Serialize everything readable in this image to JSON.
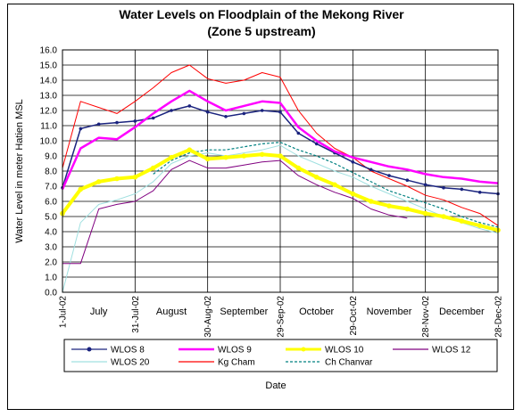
{
  "chart_data": {
    "type": "line",
    "title": "Water Levels on Floodplain of the Mekong River",
    "subtitle": "(Zone 5 upstream)",
    "xlabel": "Date",
    "ylabel": "Water  Level in meter Hatien MSL",
    "ylim": [
      0,
      16
    ],
    "yticks": [
      "0.0",
      "1.0",
      "2.0",
      "3.0",
      "4.0",
      "5.0",
      "6.0",
      "7.0",
      "8.0",
      "9.0",
      "10.0",
      "11.0",
      "12.0",
      "13.0",
      "14.0",
      "15.0",
      "16.0"
    ],
    "grid": true,
    "x": [
      "1-Jul-02",
      "8-Jul-02",
      "15-Jul-02",
      "22-Jul-02",
      "31-Jul-02",
      "8-Aug-02",
      "15-Aug-02",
      "22-Aug-02",
      "30-Aug-02",
      "7-Sep-02",
      "14-Sep-02",
      "21-Sep-02",
      "29-Sep-02",
      "6-Oct-02",
      "13-Oct-02",
      "20-Oct-02",
      "29-Oct-02",
      "6-Nov-02",
      "13-Nov-02",
      "20-Nov-02",
      "28-Nov-02",
      "6-Dec-02",
      "13-Dec-02",
      "20-Dec-02",
      "28-Dec-02"
    ],
    "date_ticks": [
      "1-Jul-02",
      "31-Jul-02",
      "30-Aug-02",
      "29-Sep-02",
      "29-Oct-02",
      "28-Nov-02",
      "28-Dec-02"
    ],
    "month_labels": [
      "July",
      "August",
      "September",
      "October",
      "November",
      "December"
    ],
    "series": [
      {
        "name": "WLOS 8",
        "color": "#1a237e",
        "style": "solid-marker",
        "values": [
          6.9,
          10.8,
          11.1,
          11.2,
          11.3,
          11.5,
          12.0,
          12.3,
          11.9,
          11.6,
          11.8,
          12.0,
          11.9,
          10.5,
          9.8,
          9.2,
          8.6,
          8.1,
          7.7,
          7.4,
          7.1,
          6.9,
          6.8,
          6.6,
          6.5
        ]
      },
      {
        "name": "WLOS 9",
        "color": "#ff00ff",
        "style": "solid-thick",
        "values": [
          6.8,
          9.5,
          10.2,
          10.1,
          10.9,
          11.8,
          12.6,
          13.3,
          12.6,
          12.0,
          12.3,
          12.6,
          12.5,
          10.9,
          10.0,
          9.3,
          8.9,
          8.6,
          8.3,
          8.1,
          7.8,
          7.6,
          7.5,
          7.3,
          7.2
        ]
      },
      {
        "name": "WLOS 10",
        "color": "#ffff00",
        "style": "solid-marker-thick",
        "values": [
          5.2,
          6.8,
          7.3,
          7.5,
          7.6,
          8.2,
          8.9,
          9.4,
          8.8,
          8.9,
          9.0,
          9.1,
          9.0,
          8.2,
          7.6,
          7.1,
          6.5,
          6.0,
          5.7,
          5.5,
          5.2,
          5.0,
          4.7,
          4.4,
          4.1
        ]
      },
      {
        "name": "WLOS 12",
        "color": "#800080",
        "style": "solid",
        "values": [
          1.9,
          1.9,
          5.5,
          5.8,
          6.0,
          6.7,
          8.1,
          8.7,
          8.2,
          8.2,
          8.4,
          8.6,
          8.7,
          7.7,
          7.1,
          6.6,
          6.2,
          5.5,
          5.1,
          4.9,
          null,
          null,
          null,
          null,
          null
        ]
      },
      {
        "name": "WLOS 20",
        "color": "#a0e0e0",
        "style": "solid",
        "values": [
          0.0,
          4.6,
          5.8,
          6.1,
          6.5,
          7.3,
          8.5,
          9.0,
          9.2,
          9.0,
          9.2,
          9.4,
          9.7,
          9.0,
          8.5,
          8.0,
          7.6,
          7.0,
          6.5,
          6.0,
          5.5,
          5.0,
          4.6,
          4.2,
          3.9
        ]
      },
      {
        "name": "Kg Cham",
        "color": "#ff0000",
        "style": "solid",
        "values": [
          8.2,
          12.6,
          12.2,
          11.8,
          12.6,
          13.5,
          14.5,
          15.0,
          14.1,
          13.8,
          14.0,
          14.5,
          14.2,
          12.0,
          10.5,
          9.5,
          8.9,
          8.0,
          7.5,
          7.0,
          6.4,
          6.1,
          5.6,
          5.2,
          4.4
        ]
      },
      {
        "name": "Ch Chanvar",
        "color": "#008080",
        "style": "dashed",
        "values": [
          null,
          null,
          null,
          null,
          null,
          7.8,
          8.7,
          9.2,
          9.4,
          9.4,
          9.6,
          9.8,
          9.9,
          9.4,
          9.0,
          8.5,
          7.9,
          7.3,
          6.7,
          6.3,
          5.9,
          5.5,
          5.0,
          4.6,
          4.3
        ]
      }
    ]
  }
}
